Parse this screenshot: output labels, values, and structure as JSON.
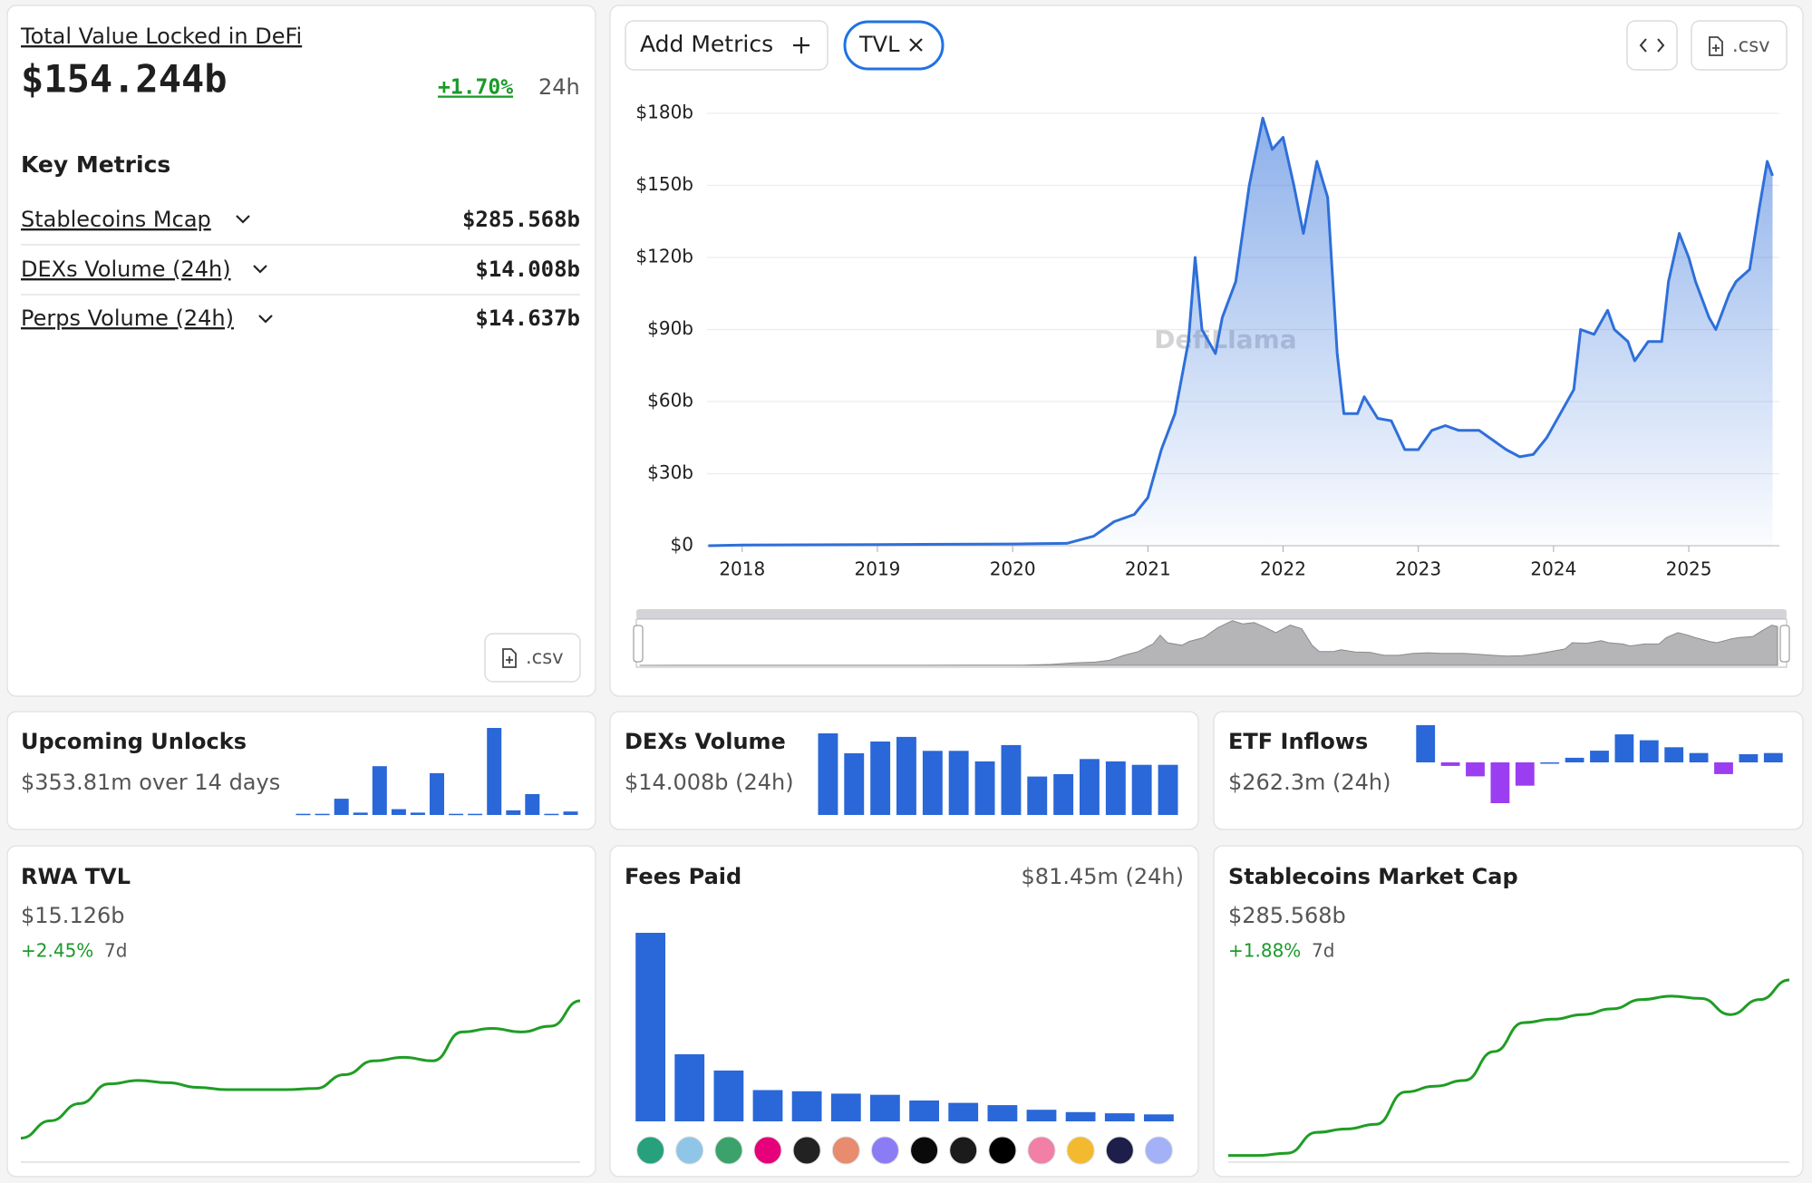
{
  "tvl_panel": {
    "title": "Total Value Locked in DeFi",
    "value": "$154.244b",
    "change": "+1.70%",
    "period": "24h",
    "key_metrics_title": "Key Metrics",
    "key_metrics": [
      {
        "label": "Stablecoins Mcap",
        "value": "$285.568b"
      },
      {
        "label": "DEXs Volume (24h)",
        "value": "$14.008b"
      },
      {
        "label": "Perps Volume (24h)",
        "value": "$14.637b"
      }
    ],
    "csv_button": ".csv"
  },
  "toolbar": {
    "add_metrics": "Add Metrics",
    "csv_button": ".csv"
  },
  "chart_data": {
    "type": "area",
    "watermark": "DefiLlama",
    "x": [
      2017.75,
      2018,
      2019,
      2020,
      2020.4,
      2020.6,
      2020.75,
      2020.9,
      2021.0,
      2021.1,
      2021.2,
      2021.3,
      2021.35,
      2021.4,
      2021.5,
      2021.55,
      2021.65,
      2021.75,
      2021.85,
      2021.92,
      2022.0,
      2022.08,
      2022.15,
      2022.25,
      2022.33,
      2022.4,
      2022.45,
      2022.55,
      2022.6,
      2022.7,
      2022.8,
      2022.9,
      2023.0,
      2023.1,
      2023.2,
      2023.3,
      2023.45,
      2023.55,
      2023.65,
      2023.75,
      2023.85,
      2023.95,
      2024.05,
      2024.15,
      2024.2,
      2024.3,
      2024.4,
      2024.45,
      2024.55,
      2024.6,
      2024.7,
      2024.8,
      2024.85,
      2024.93,
      2025.0,
      2025.05,
      2025.15,
      2025.2,
      2025.3,
      2025.35,
      2025.45,
      2025.52,
      2025.58,
      2025.62
    ],
    "series": [
      {
        "name": "TVL",
        "color": "#2e6fd9",
        "values": [
          0,
          0.3,
          0.5,
          0.7,
          1,
          4,
          10,
          13,
          20,
          40,
          55,
          85,
          120,
          90,
          80,
          95,
          110,
          150,
          178,
          165,
          170,
          150,
          130,
          160,
          145,
          80,
          55,
          55,
          62,
          53,
          52,
          40,
          40,
          48,
          50,
          48,
          48,
          44,
          40,
          37,
          38,
          45,
          55,
          65,
          90,
          88,
          98,
          90,
          85,
          77,
          85,
          85,
          110,
          130,
          120,
          110,
          95,
          90,
          105,
          110,
          115,
          140,
          160,
          154
        ]
      }
    ],
    "xlim": [
      2017.74,
      2025.67
    ],
    "xticks": [
      2018,
      2019,
      2020,
      2021,
      2022,
      2023,
      2024,
      2025
    ],
    "ylim": [
      0,
      180
    ],
    "yticks": [
      {
        "value": 0,
        "label": "$0"
      },
      {
        "value": 30,
        "label": "$30b"
      },
      {
        "value": 60,
        "label": "$60b"
      },
      {
        "value": 90,
        "label": "$90b"
      },
      {
        "value": 120,
        "label": "$120b"
      },
      {
        "value": 150,
        "label": "$150b"
      },
      {
        "value": 180,
        "label": "$180b"
      }
    ],
    "grid": true
  },
  "cards": [
    {
      "title": "Upcoming Unlocks",
      "subtitle": "$353.81m over 14 days",
      "type": "bar",
      "color": "#2a67d8",
      "values": [
        1,
        1,
        14,
        2,
        42,
        5,
        2,
        36,
        1,
        1,
        75,
        4,
        18,
        1,
        3
      ]
    },
    {
      "title": "DEXs Volume",
      "subtitle": "$14.008b (24h)",
      "type": "bar",
      "color": "#2a67d8",
      "values": [
        70,
        53,
        63,
        67,
        55,
        55,
        46,
        60,
        33,
        35,
        48,
        46,
        43,
        43
      ]
    },
    {
      "title": "ETF Inflows",
      "subtitle": "$262.3m (24h)",
      "type": "bar",
      "color": "#2a67d8",
      "negative_color": "#9b3df0",
      "values": [
        32,
        -3,
        -12,
        -35,
        -20,
        0,
        4,
        10,
        24,
        19,
        13,
        8,
        -10,
        7,
        8
      ]
    },
    {
      "title": "RWA TVL",
      "value": "$15.126b",
      "change": "+2.45%",
      "period": "7d",
      "type": "line",
      "color": "#1f9d24",
      "values": [
        20,
        35,
        50,
        67,
        70,
        68,
        64,
        62,
        62,
        62,
        63,
        75,
        87,
        90,
        87,
        112,
        115,
        112,
        117,
        139
      ]
    },
    {
      "title": "Fees Paid",
      "value": "$81.45m (24h)",
      "type": "bar",
      "color": "#2a67d8",
      "values": [
        163,
        58,
        44,
        27,
        26,
        24,
        23,
        18,
        16,
        14,
        10,
        8,
        7,
        6
      ]
    },
    {
      "title": "Stablecoins Market Cap",
      "value": "$285.568b",
      "change": "+1.88%",
      "period": "7d",
      "type": "line",
      "color": "#1f9d24",
      "values": [
        5,
        5,
        7,
        25,
        28,
        32,
        60,
        65,
        70,
        95,
        120,
        123,
        127,
        132,
        140,
        143,
        141,
        127,
        140,
        157
      ]
    }
  ]
}
